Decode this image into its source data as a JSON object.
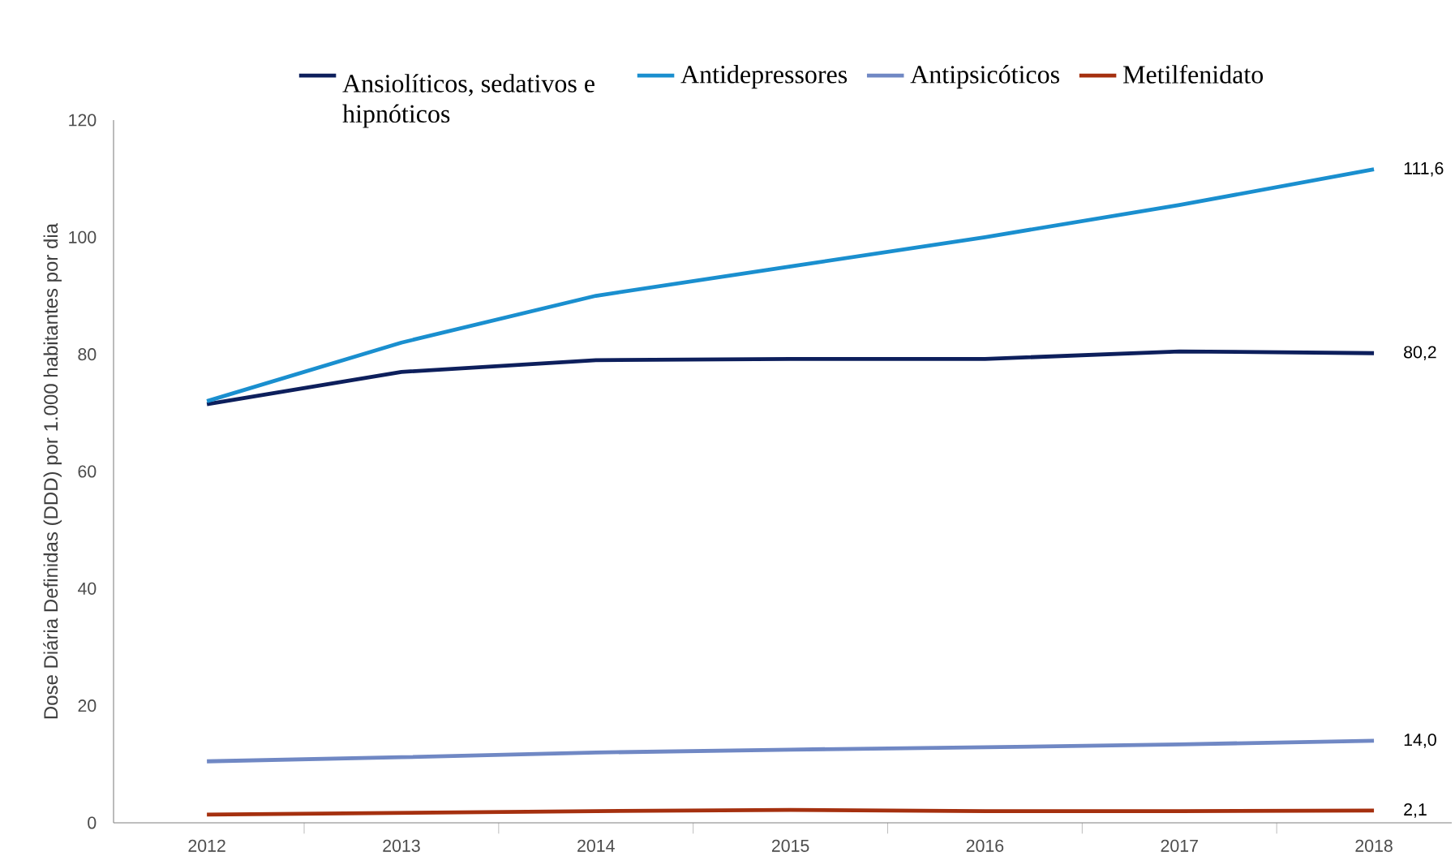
{
  "chart_data": {
    "type": "line",
    "ylabel": "Dose Diária Definidas (DDD) por 1.000 habitantes por dia",
    "categories": [
      "2012",
      "2013",
      "2014",
      "2015",
      "2016",
      "2017",
      "2018"
    ],
    "series": [
      {
        "name": "Ansiolíticos, sedativos e hipnóticos",
        "color": "#0d1f5c",
        "values": [
          71.5,
          77,
          79,
          79.2,
          79.2,
          80.5,
          80.2
        ]
      },
      {
        "name": "Antidepressores",
        "color": "#1a8fcf",
        "values": [
          72,
          82,
          90,
          95,
          100,
          105.5,
          111.6
        ]
      },
      {
        "name": "Antipsicóticos",
        "color": "#7088c4",
        "values": [
          10.5,
          11.2,
          12,
          12.5,
          12.9,
          13.4,
          14.0
        ]
      },
      {
        "name": "Metilfenidato",
        "color": "#a5300f",
        "values": [
          1.4,
          1.7,
          2.0,
          2.2,
          2.0,
          2.0,
          2.1
        ]
      }
    ],
    "annotations": [
      {
        "text": "111,6",
        "x": "2018",
        "y": 111.6
      },
      {
        "text": "80,2",
        "x": "2018",
        "y": 80.2
      },
      {
        "text": "14,0",
        "x": "2018",
        "y": 14.0
      },
      {
        "text": "2,1",
        "x": "2018",
        "y": 2.1
      }
    ],
    "ylim": [
      0,
      120
    ],
    "yticks": [
      0,
      20,
      40,
      60,
      80,
      100,
      120
    ],
    "grid": false,
    "legend": "top",
    "marker": "none",
    "line_style": "solid"
  }
}
